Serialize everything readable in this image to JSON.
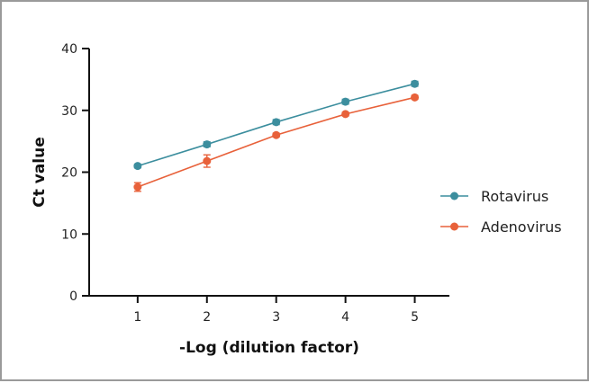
{
  "chart_data": {
    "type": "line",
    "title": "",
    "xlabel": "-Log (dilution factor)",
    "ylabel": "Ct value",
    "x": [
      1,
      2,
      3,
      4,
      5
    ],
    "xlim": [
      0.3,
      5.5
    ],
    "ylim": [
      0,
      40
    ],
    "x_ticks": [
      "1",
      "2",
      "3",
      "4",
      "5"
    ],
    "y_ticks": [
      "0",
      "10",
      "20",
      "30",
      "40"
    ],
    "grid": false,
    "legend_position": "right",
    "series": [
      {
        "name": "Rotavirus",
        "color": "#3c8e9e",
        "values": [
          21.0,
          24.5,
          28.1,
          31.4,
          34.3
        ],
        "errors": [
          0.3,
          0.4,
          0.4,
          0.4,
          0.4
        ]
      },
      {
        "name": "Adenovirus",
        "color": "#e8613a",
        "values": [
          17.6,
          21.8,
          26.0,
          29.4,
          32.1
        ],
        "errors": [
          0.7,
          1.0,
          0.3,
          0.3,
          0.3
        ]
      }
    ]
  }
}
